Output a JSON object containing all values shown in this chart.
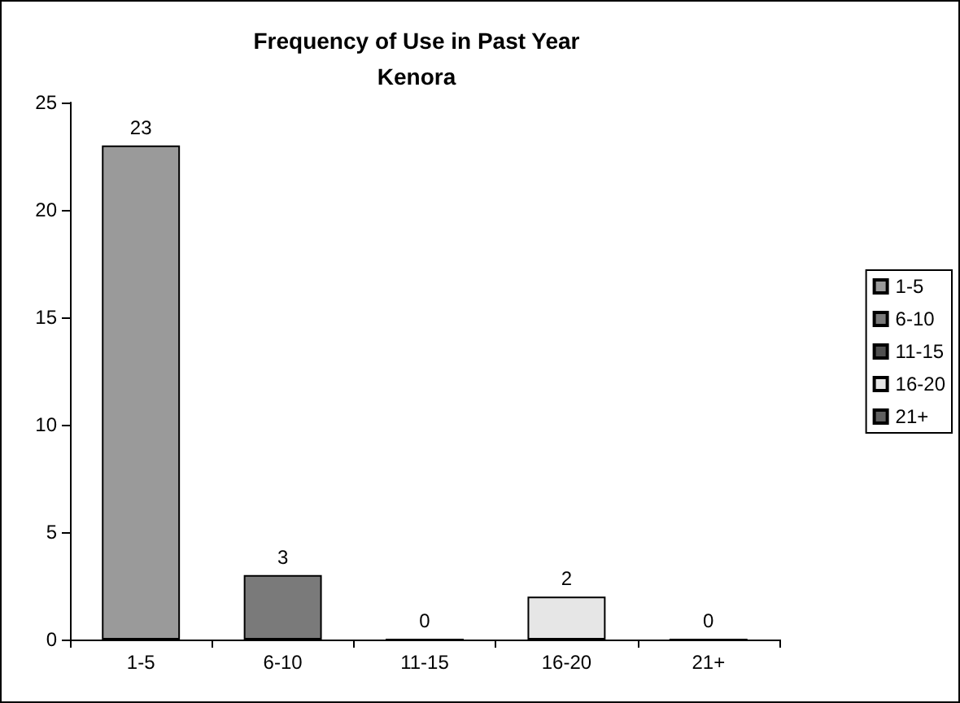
{
  "chart_data": {
    "type": "bar",
    "title": "Frequency of Use in Past Year\nKenora",
    "categories": [
      "1-5",
      "6-10",
      "11-15",
      "16-20",
      "21+"
    ],
    "series": [
      {
        "name": "1-5",
        "color": "#9a9a9a",
        "values": [
          23,
          null,
          null,
          null,
          null
        ]
      },
      {
        "name": "6-10",
        "color": "#7a7a7a",
        "values": [
          null,
          3,
          null,
          null,
          null
        ]
      },
      {
        "name": "11-15",
        "color": "#505050",
        "values": [
          null,
          null,
          0,
          null,
          null
        ]
      },
      {
        "name": "16-20",
        "color": "#e6e6e6",
        "values": [
          null,
          null,
          null,
          2,
          null
        ]
      },
      {
        "name": "21+",
        "color": "#606060",
        "values": [
          null,
          null,
          null,
          null,
          0
        ]
      }
    ],
    "stacked": true,
    "ylim": [
      0,
      25
    ],
    "yticks": [
      0,
      5,
      10,
      15,
      20,
      25
    ],
    "grid": false,
    "legend": "right",
    "data_labels": true
  }
}
